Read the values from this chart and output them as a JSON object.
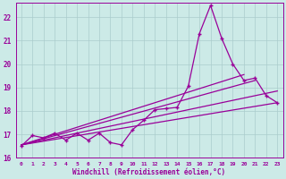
{
  "xlabel": "Windchill (Refroidissement éolien,°C)",
  "bg_color": "#cceae7",
  "line_color": "#990099",
  "grid_color": "#aacccc",
  "xlim": [
    -0.5,
    23.5
  ],
  "ylim": [
    16,
    22.6
  ],
  "xticks": [
    0,
    1,
    2,
    3,
    4,
    5,
    6,
    7,
    8,
    9,
    10,
    11,
    12,
    13,
    14,
    15,
    16,
    17,
    18,
    19,
    20,
    21,
    22,
    23
  ],
  "yticks": [
    16,
    17,
    18,
    19,
    20,
    21,
    22
  ],
  "main_x": [
    0,
    1,
    2,
    3,
    4,
    5,
    6,
    7,
    8,
    9,
    10,
    11,
    12,
    13,
    14,
    15,
    16,
    17,
    18,
    19,
    20,
    21,
    22,
    23
  ],
  "main_y": [
    16.5,
    16.95,
    16.85,
    17.05,
    16.75,
    17.05,
    16.75,
    17.05,
    16.65,
    16.55,
    17.2,
    17.6,
    18.05,
    18.1,
    18.15,
    19.05,
    21.3,
    22.5,
    21.1,
    20.0,
    19.3,
    19.4,
    18.65,
    18.35
  ],
  "line1_x": [
    0,
    23
  ],
  "line1_y": [
    16.55,
    18.35
  ],
  "line2_x": [
    0,
    23
  ],
  "line2_y": [
    16.55,
    18.85
  ],
  "line3_x": [
    0,
    21
  ],
  "line3_y": [
    16.55,
    19.3
  ],
  "line4_x": [
    0,
    20
  ],
  "line4_y": [
    16.55,
    19.55
  ]
}
